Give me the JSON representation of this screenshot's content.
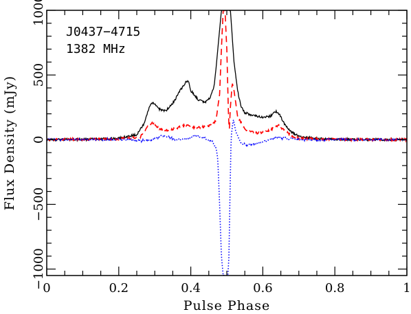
{
  "chart_data": {
    "type": "line",
    "title": "",
    "annotations": [
      "J0437−4715",
      "1382 MHz"
    ],
    "xlabel": "Pulse Phase",
    "ylabel": "Flux Density (mJy)",
    "xlim": [
      0,
      1
    ],
    "ylim": [
      -1050,
      1000
    ],
    "x_ticks": [
      0,
      0.2,
      0.4,
      0.6,
      0.8,
      1
    ],
    "x_tick_labels": [
      "0",
      "0.2",
      "0.4",
      "0.6",
      "0.8",
      "1"
    ],
    "y_ticks": [
      -1000,
      -500,
      0,
      500,
      1000
    ],
    "y_tick_labels": [
      "−1000",
      "−500",
      "0",
      "500",
      "1000"
    ],
    "grid": false,
    "legend": null,
    "series": [
      {
        "color": "#000000",
        "style": "solid",
        "x": [
          0,
          0.1,
          0.2,
          0.25,
          0.27,
          0.285,
          0.295,
          0.31,
          0.33,
          0.35,
          0.37,
          0.385,
          0.393,
          0.4,
          0.42,
          0.44,
          0.455,
          0.465,
          0.47,
          0.475,
          0.48,
          0.485,
          0.49,
          0.5,
          0.505,
          0.51,
          0.52,
          0.53,
          0.54,
          0.55,
          0.57,
          0.6,
          0.62,
          0.635,
          0.645,
          0.66,
          0.68,
          0.7,
          0.75,
          0.8,
          0.9,
          1
        ],
        "y": [
          0,
          2,
          10,
          40,
          120,
          250,
          290,
          240,
          220,
          280,
          380,
          440,
          455,
          380,
          310,
          290,
          330,
          420,
          550,
          700,
          850,
          1000,
          1000,
          1000,
          1000,
          1000,
          600,
          380,
          250,
          210,
          190,
          175,
          180,
          220,
          200,
          120,
          60,
          25,
          8,
          3,
          1,
          0
        ]
      },
      {
        "color": "#ff0000",
        "style": "dashed",
        "x": [
          0,
          0.2,
          0.26,
          0.275,
          0.285,
          0.295,
          0.31,
          0.33,
          0.35,
          0.37,
          0.39,
          0.41,
          0.43,
          0.45,
          0.46,
          0.47,
          0.48,
          0.485,
          0.49,
          0.495,
          0.5,
          0.505,
          0.507,
          0.51,
          0.515,
          0.52,
          0.53,
          0.55,
          0.58,
          0.61,
          0.63,
          0.645,
          0.66,
          0.68,
          0.7,
          0.8,
          1
        ],
        "y": [
          0,
          5,
          20,
          80,
          120,
          130,
          90,
          70,
          80,
          100,
          110,
          90,
          95,
          110,
          120,
          150,
          350,
          700,
          1000,
          1000,
          700,
          150,
          80,
          250,
          440,
          380,
          180,
          80,
          50,
          60,
          90,
          110,
          70,
          30,
          10,
          2,
          0
        ]
      },
      {
        "color": "#0000ff",
        "style": "dotted",
        "x": [
          0,
          0.2,
          0.28,
          0.3,
          0.32,
          0.34,
          0.36,
          0.38,
          0.4,
          0.42,
          0.44,
          0.46,
          0.47,
          0.475,
          0.48,
          0.485,
          0.49,
          0.495,
          0.5,
          0.503,
          0.506,
          0.509,
          0.512,
          0.518,
          0.525,
          0.54,
          0.56,
          0.6,
          0.63,
          0.645,
          0.66,
          0.7,
          0.8,
          1
        ],
        "y": [
          0,
          0,
          -10,
          10,
          30,
          20,
          0,
          5,
          20,
          30,
          10,
          -20,
          -60,
          -150,
          -500,
          -900,
          -1050,
          -1050,
          -1050,
          -1050,
          -900,
          -400,
          20,
          160,
          60,
          -30,
          -40,
          -20,
          10,
          20,
          10,
          0,
          0,
          0
        ]
      }
    ]
  }
}
